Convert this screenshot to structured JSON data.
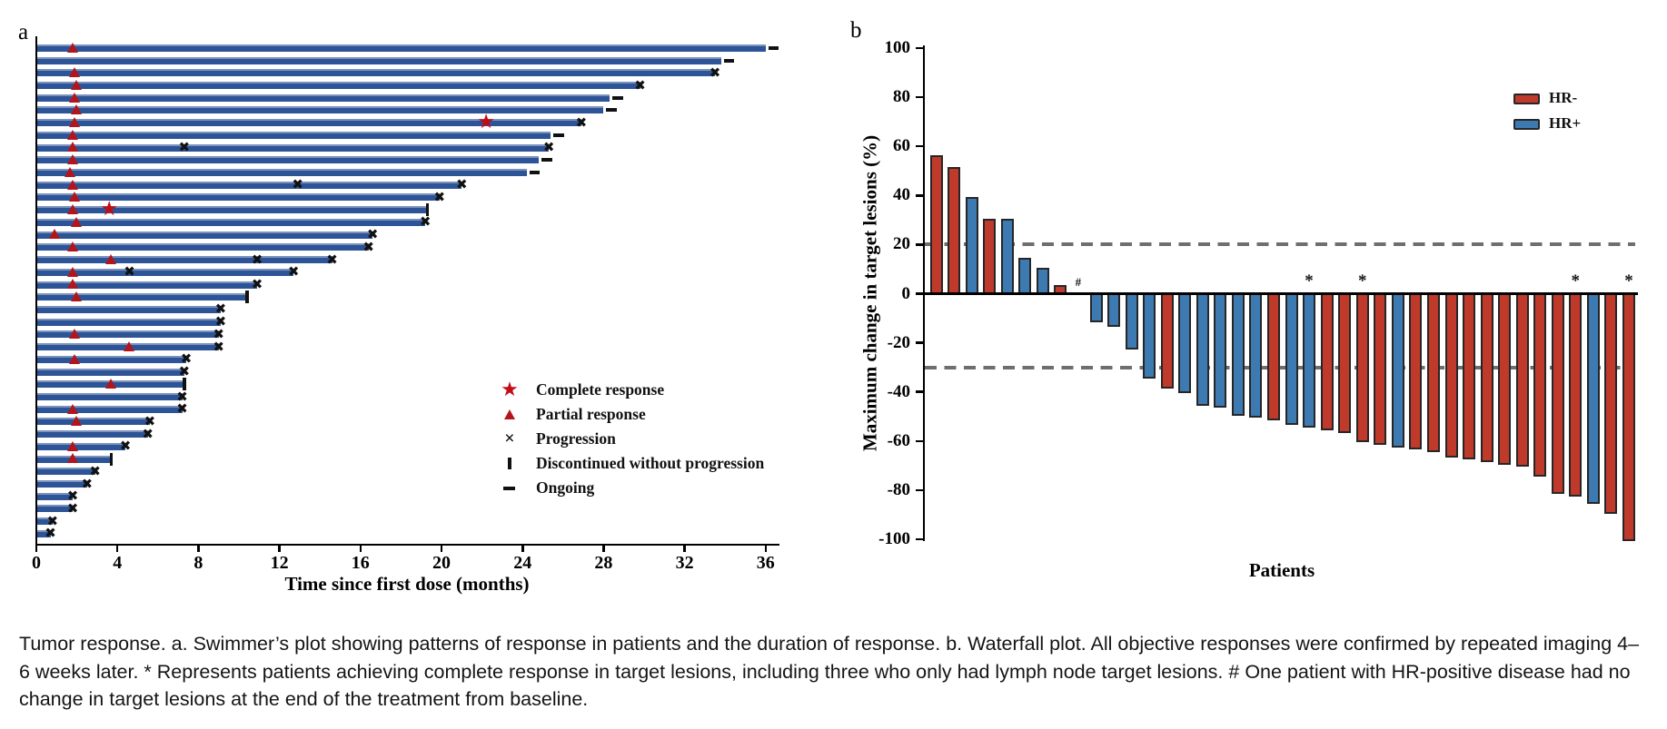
{
  "figure": {
    "panel_a_label": "a",
    "panel_b_label": "b",
    "caption": "Tumor response. a. Swimmer’s plot showing patterns of response in patients and the duration of response. b. Waterfall plot. All objective responses were confirmed by repeated imaging 4–6 weeks later. * Represents patients achieving complete response in target lesions, including three who only had lymph node target lesions. # One patient with HR-positive disease had no change in target lesions at the end of the treatment from baseline."
  },
  "colors": {
    "swimmer_bar": "#2d5496",
    "swimmer_bar_highlight": "#7a92bd",
    "complete_response": "#c20d19",
    "partial_response": "#b2151b",
    "event_marker": "#111111",
    "hr_negative": "#c03a2c",
    "hr_positive": "#3d7ab2",
    "bar_outline": "#262626",
    "reference_line": "#6e6e6e"
  },
  "chart_data": [
    {
      "type": "swimmer",
      "panel": "a",
      "xlabel": "Time since first dose (months)",
      "x_ticks": [
        0,
        4,
        8,
        12,
        16,
        20,
        24,
        28,
        32,
        36
      ],
      "xlim": [
        0,
        36.6
      ],
      "grid": false,
      "legend_position": "center-right",
      "legend": [
        {
          "marker": "star",
          "label": "Complete response"
        },
        {
          "marker": "triangle",
          "label": "Partial response"
        },
        {
          "marker": "x",
          "label": "Progression"
        },
        {
          "marker": "vbar",
          "label": "Discontinued without progression"
        },
        {
          "marker": "dash",
          "label": "Ongoing"
        }
      ],
      "patients": [
        {
          "duration": 36.0,
          "partial_response": [
            1.8
          ],
          "ongoing": true
        },
        {
          "duration": 33.8,
          "ongoing": true
        },
        {
          "duration": 33.5,
          "partial_response": [
            1.9
          ],
          "progression": [
            33.5
          ]
        },
        {
          "duration": 29.8,
          "partial_response": [
            2.0
          ],
          "progression": [
            29.8
          ]
        },
        {
          "duration": 28.3,
          "partial_response": [
            1.9
          ],
          "ongoing": true
        },
        {
          "duration": 28.0,
          "partial_response": [
            2.0
          ],
          "ongoing": true
        },
        {
          "duration": 26.9,
          "partial_response": [
            1.9
          ],
          "complete_response": [
            22.2
          ],
          "progression": [
            26.9
          ]
        },
        {
          "duration": 25.4,
          "partial_response": [
            1.8
          ],
          "ongoing": true
        },
        {
          "duration": 25.3,
          "partial_response": [
            1.8
          ],
          "progression": [
            7.3,
            25.3
          ]
        },
        {
          "duration": 24.8,
          "partial_response": [
            1.8
          ],
          "ongoing": true
        },
        {
          "duration": 24.2,
          "partial_response": [
            1.7
          ],
          "ongoing": true
        },
        {
          "duration": 21.0,
          "partial_response": [
            1.8
          ],
          "progression": [
            12.9,
            21.0
          ]
        },
        {
          "duration": 19.9,
          "partial_response": [
            1.9
          ],
          "progression": [
            19.9
          ]
        },
        {
          "duration": 19.3,
          "partial_response": [
            1.8
          ],
          "complete_response": [
            3.6
          ],
          "discontinued": 19.3
        },
        {
          "duration": 19.2,
          "partial_response": [
            2.0
          ],
          "progression": [
            19.2
          ]
        },
        {
          "duration": 16.6,
          "partial_response": [
            0.9
          ],
          "progression": [
            16.6
          ]
        },
        {
          "duration": 16.4,
          "partial_response": [
            1.8
          ],
          "progression": [
            16.4
          ]
        },
        {
          "duration": 14.6,
          "partial_response": [
            3.7
          ],
          "progression": [
            10.9,
            14.6
          ]
        },
        {
          "duration": 12.7,
          "partial_response": [
            1.8
          ],
          "progression": [
            4.6,
            12.7
          ]
        },
        {
          "duration": 10.9,
          "partial_response": [
            1.8
          ],
          "progression": [
            10.9
          ]
        },
        {
          "duration": 10.4,
          "partial_response": [
            2.0
          ],
          "discontinued": 10.4
        },
        {
          "duration": 9.1,
          "progression": [
            9.1
          ]
        },
        {
          "duration": 9.1,
          "progression": [
            9.1
          ]
        },
        {
          "duration": 9.0,
          "partial_response": [
            1.9
          ],
          "progression": [
            9.0
          ]
        },
        {
          "duration": 9.0,
          "partial_response": [
            4.6
          ],
          "progression": [
            9.0
          ]
        },
        {
          "duration": 7.4,
          "partial_response": [
            1.9
          ],
          "progression": [
            7.4
          ]
        },
        {
          "duration": 7.3,
          "progression": [
            7.3
          ]
        },
        {
          "duration": 7.3,
          "partial_response": [
            3.7
          ],
          "discontinued": 7.3
        },
        {
          "duration": 7.2,
          "progression": [
            7.2
          ]
        },
        {
          "duration": 7.2,
          "partial_response": [
            1.8
          ],
          "progression": [
            7.2
          ]
        },
        {
          "duration": 5.6,
          "partial_response": [
            2.0
          ],
          "progression": [
            5.6
          ]
        },
        {
          "duration": 5.5,
          "progression": [
            5.5
          ]
        },
        {
          "duration": 4.4,
          "partial_response": [
            1.8
          ],
          "progression": [
            4.4
          ]
        },
        {
          "duration": 3.7,
          "partial_response": [
            1.8
          ],
          "discontinued": 3.7
        },
        {
          "duration": 2.9,
          "progression": [
            2.9
          ]
        },
        {
          "duration": 2.5,
          "progression": [
            2.5
          ]
        },
        {
          "duration": 1.8,
          "progression": [
            1.8
          ]
        },
        {
          "duration": 1.8,
          "progression": [
            1.8
          ]
        },
        {
          "duration": 0.8,
          "progression": [
            0.8
          ]
        },
        {
          "duration": 0.7,
          "progression": [
            0.7
          ]
        }
      ]
    },
    {
      "type": "waterfall",
      "panel": "b",
      "ylabel": "Maximum change in target lesions (%)",
      "xlabel": "Patients",
      "y_ticks": [
        100,
        80,
        60,
        40,
        20,
        0,
        -20,
        -40,
        -60,
        -80,
        -100
      ],
      "ylim": [
        -100,
        100
      ],
      "grid": false,
      "reference_lines": [
        20,
        -30
      ],
      "legend_position": "top-right",
      "legend": [
        {
          "label": "HR-",
          "group": "HR-"
        },
        {
          "label": "HR+",
          "group": "HR+"
        }
      ],
      "bars": [
        {
          "value": 56,
          "group": "HR-"
        },
        {
          "value": 51,
          "group": "HR-"
        },
        {
          "value": 39,
          "group": "HR+"
        },
        {
          "value": 30,
          "group": "HR-"
        },
        {
          "value": 30,
          "group": "HR+"
        },
        {
          "value": 14,
          "group": "HR+"
        },
        {
          "value": 10,
          "group": "HR+"
        },
        {
          "value": 3,
          "group": "HR-"
        },
        {
          "value": 0,
          "group": "HR+",
          "annotation": "#"
        },
        {
          "value": -11,
          "group": "HR+"
        },
        {
          "value": -13,
          "group": "HR+"
        },
        {
          "value": -22,
          "group": "HR+"
        },
        {
          "value": -34,
          "group": "HR+"
        },
        {
          "value": -38,
          "group": "HR-"
        },
        {
          "value": -40,
          "group": "HR+"
        },
        {
          "value": -45,
          "group": "HR+"
        },
        {
          "value": -46,
          "group": "HR+"
        },
        {
          "value": -49,
          "group": "HR+"
        },
        {
          "value": -50,
          "group": "HR+"
        },
        {
          "value": -51,
          "group": "HR-"
        },
        {
          "value": -53,
          "group": "HR+"
        },
        {
          "value": -54,
          "group": "HR+",
          "annotation": "*"
        },
        {
          "value": -55,
          "group": "HR-"
        },
        {
          "value": -56,
          "group": "HR-"
        },
        {
          "value": -60,
          "group": "HR-",
          "annotation": "*"
        },
        {
          "value": -61,
          "group": "HR-"
        },
        {
          "value": -62,
          "group": "HR+"
        },
        {
          "value": -63,
          "group": "HR-"
        },
        {
          "value": -64,
          "group": "HR-"
        },
        {
          "value": -66,
          "group": "HR-"
        },
        {
          "value": -67,
          "group": "HR-"
        },
        {
          "value": -68,
          "group": "HR-"
        },
        {
          "value": -69,
          "group": "HR-"
        },
        {
          "value": -70,
          "group": "HR-"
        },
        {
          "value": -74,
          "group": "HR-"
        },
        {
          "value": -81,
          "group": "HR-"
        },
        {
          "value": -82,
          "group": "HR-",
          "annotation": "*"
        },
        {
          "value": -85,
          "group": "HR+"
        },
        {
          "value": -89,
          "group": "HR-"
        },
        {
          "value": -100,
          "group": "HR-",
          "annotation": "*"
        }
      ]
    }
  ]
}
